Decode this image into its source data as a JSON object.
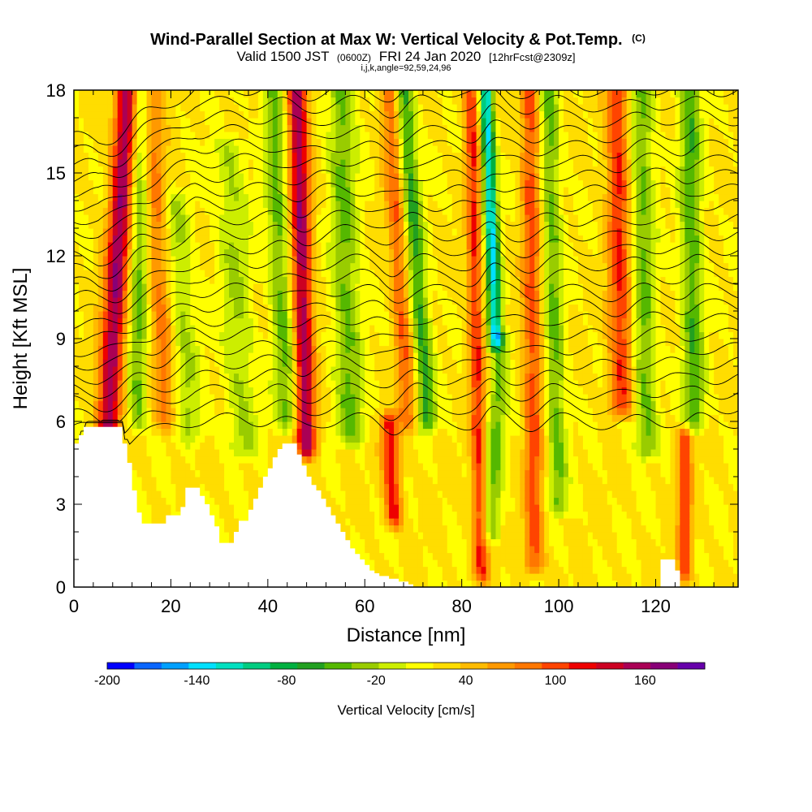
{
  "chart_data": {
    "type": "heatmap",
    "title": "Wind-Parallel Section at Max W: Vertical Velocity & Pot.Temp.",
    "title_mark": "(C)",
    "subtitle_main_a": "Valid 1500 JST",
    "subtitle_small_a": "(0600Z)",
    "subtitle_main_b": "FRI 24 Jan 2020",
    "subtitle_small_b": "[12hrFcst@2309z]",
    "subtitle_line2": "i,j,k,angle=92,59,24,96",
    "xlabel": "Distance [nm]",
    "ylabel": "Height [Kft MSL]",
    "xlim": [
      0,
      137
    ],
    "ylim": [
      0,
      18
    ],
    "x_ticks": [
      0,
      20,
      40,
      60,
      80,
      100,
      120
    ],
    "x_tick_labels": [
      "0",
      "20",
      "40",
      "60",
      "80",
      "100",
      "120"
    ],
    "y_ticks": [
      0,
      3,
      6,
      9,
      12,
      15,
      18
    ],
    "y_tick_labels": [
      "0",
      "3",
      "6",
      "9",
      "12",
      "15",
      "18"
    ],
    "colorbar": {
      "label": "Vertical Velocity [cm/s]",
      "min": -200,
      "max": 200,
      "tick_values": [
        -200,
        -140,
        -80,
        -20,
        40,
        100,
        160
      ],
      "tick_labels": [
        "-200",
        "-140",
        "-80",
        "-20",
        "40",
        "100",
        "160"
      ],
      "colors": [
        "#0000ff",
        "#0a66ff",
        "#00a0ff",
        "#00e0ff",
        "#00e0c0",
        "#00cc80",
        "#00b040",
        "#22a020",
        "#55b800",
        "#99cc00",
        "#ccee00",
        "#ffff00",
        "#ffdd00",
        "#ffbb00",
        "#ff9900",
        "#ff7700",
        "#ff4400",
        "#ee0000",
        "#cc0022",
        "#aa0055",
        "#880077",
        "#6600aa"
      ]
    },
    "terrain": {
      "x": [
        0,
        1,
        1,
        2,
        2,
        5,
        5,
        7,
        7,
        10,
        10,
        11,
        11,
        12,
        12,
        13,
        13,
        14,
        14,
        15,
        15,
        16,
        16,
        17,
        17,
        18,
        18,
        19,
        19,
        21,
        21,
        22,
        22,
        23,
        23,
        24,
        24,
        26,
        26,
        27,
        27,
        28,
        28,
        29,
        29,
        30,
        30,
        31,
        31,
        33,
        33,
        34,
        34,
        36,
        36,
        37,
        37,
        38,
        38,
        39,
        39,
        40,
        40,
        41,
        41,
        42,
        42,
        43,
        43,
        44,
        44,
        46,
        46,
        47,
        47,
        48,
        48,
        49,
        49,
        50,
        50,
        51,
        51,
        52,
        52,
        53,
        53,
        54,
        54,
        55,
        55,
        56,
        56,
        57,
        57,
        58,
        58,
        59,
        59,
        60,
        60,
        61,
        61,
        62,
        62,
        63,
        63,
        65,
        65,
        67,
        67,
        69,
        69,
        70,
        70,
        72,
        72,
        75,
        75,
        121,
        121,
        124,
        124,
        125,
        125,
        137
      ],
      "height": [
        5.2,
        5.2,
        5.5,
        5.5,
        5.8,
        5.8,
        5.8,
        5.8,
        5.8,
        5.8,
        5.2,
        5.2,
        4.5,
        4.5,
        3.5,
        3.5,
        2.7,
        2.7,
        2.3,
        2.3,
        2.3,
        2.3,
        2.3,
        2.3,
        2.3,
        2.3,
        2.3,
        2.3,
        2.6,
        2.6,
        2.6,
        2.6,
        2.9,
        2.9,
        3.6,
        3.6,
        3.6,
        3.6,
        3.3,
        3.3,
        3.0,
        3.0,
        2.6,
        2.6,
        2.2,
        2.2,
        1.6,
        1.6,
        1.6,
        1.6,
        2.0,
        2.0,
        2.4,
        2.4,
        2.8,
        2.8,
        3.2,
        3.2,
        3.6,
        3.6,
        4.0,
        4.0,
        4.3,
        4.3,
        4.7,
        4.7,
        5.0,
        5.0,
        5.2,
        5.2,
        5.2,
        5.2,
        4.8,
        4.8,
        4.4,
        4.4,
        4.0,
        4.0,
        3.7,
        3.7,
        3.5,
        3.5,
        3.2,
        3.2,
        2.9,
        2.9,
        2.6,
        2.6,
        2.3,
        2.3,
        2.0,
        2.0,
        1.7,
        1.7,
        1.4,
        1.4,
        1.2,
        1.2,
        1.0,
        1.0,
        0.8,
        0.8,
        0.6,
        0.6,
        0.5,
        0.5,
        0.4,
        0.4,
        0.3,
        0.3,
        0.2,
        0.2,
        0.1,
        0.1,
        0.0,
        0.0,
        0.0,
        0.0,
        0.0,
        0.0,
        1.0,
        1.0,
        0.6,
        0.6,
        0.0,
        0.0
      ]
    },
    "velocity_bands": [
      {
        "x_bottom": 7,
        "x_top": 11,
        "w": 140,
        "width": 3.0,
        "base": 5.8,
        "top": 18
      },
      {
        "x_bottom": 13,
        "x_top": 14,
        "w": -60,
        "width": 2.4,
        "base": 6.0,
        "top": 18
      },
      {
        "x_bottom": 19,
        "x_top": 16,
        "w": 60,
        "width": 2.8,
        "base": 6.0,
        "top": 18
      },
      {
        "x_bottom": 24,
        "x_top": 21,
        "w": -40,
        "width": 3.5,
        "base": 5.5,
        "top": 14
      },
      {
        "x_bottom": 35,
        "x_top": 32,
        "w": -40,
        "width": 4.0,
        "base": 5.0,
        "top": 16
      },
      {
        "x_bottom": 48,
        "x_top": 46,
        "w": 140,
        "width": 2.6,
        "base": 5.0,
        "top": 18
      },
      {
        "x_bottom": 44,
        "x_top": 41,
        "w": -60,
        "width": 3.0,
        "base": 6.0,
        "top": 18
      },
      {
        "x_bottom": 57,
        "x_top": 55,
        "w": -60,
        "width": 3.5,
        "base": 5.5,
        "top": 18
      },
      {
        "x_bottom": 66,
        "x_top": 65,
        "w": 100,
        "width": 2.2,
        "base": 2.5,
        "top": 6.0
      },
      {
        "x_bottom": 69,
        "x_top": 65,
        "w": 70,
        "width": 2.5,
        "base": 6.0,
        "top": 18
      },
      {
        "x_bottom": 73,
        "x_top": 68,
        "w": -80,
        "width": 2.5,
        "base": 6.0,
        "top": 18
      },
      {
        "x_bottom": 84,
        "x_top": 82,
        "w": 90,
        "width": 2.0,
        "base": 0.5,
        "top": 18
      },
      {
        "x_bottom": 87,
        "x_top": 85,
        "w": -150,
        "width": 1.8,
        "base": 9.0,
        "top": 18
      },
      {
        "x_bottom": 86,
        "x_top": 88,
        "w": -60,
        "width": 2.4,
        "base": 2.0,
        "top": 9.0
      },
      {
        "x_bottom": 95,
        "x_top": 94,
        "w": 80,
        "width": 2.4,
        "base": 0.8,
        "top": 18
      },
      {
        "x_bottom": 100,
        "x_top": 98,
        "w": -60,
        "width": 2.5,
        "base": 3.0,
        "top": 18
      },
      {
        "x_bottom": 113,
        "x_top": 112,
        "w": 90,
        "width": 3.0,
        "base": 6.5,
        "top": 18
      },
      {
        "x_bottom": 118,
        "x_top": 117,
        "w": -60,
        "width": 3.0,
        "base": 5.0,
        "top": 18
      },
      {
        "x_bottom": 126,
        "x_top": 126,
        "w": 90,
        "width": 1.8,
        "base": 0.5,
        "top": 5.5
      },
      {
        "x_bottom": 128,
        "x_top": 127,
        "w": -70,
        "width": 2.8,
        "base": 6.0,
        "top": 18
      }
    ],
    "isentropes": {
      "count": 24,
      "low_bottom": 1.0,
      "low_top": 6.4,
      "high_bottom": 6.0,
      "high_top": 18.0
    }
  }
}
